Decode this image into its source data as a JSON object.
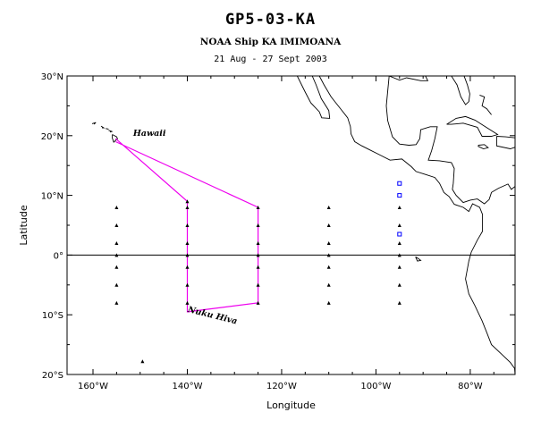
{
  "title": "GP5-03-KA",
  "subtitle": "NOAA Ship KA IMIMOANA",
  "dates": "21 Aug - 27 Sept 2003",
  "axes": {
    "xlabel": "Longitude",
    "ylabel": "Latitude",
    "x_ticks": [
      {
        "value": -160,
        "label": "160°W"
      },
      {
        "value": -140,
        "label": "140°W"
      },
      {
        "value": -120,
        "label": "120°W"
      },
      {
        "value": -100,
        "label": "100°W"
      },
      {
        "value": -80,
        "label": "80°W"
      }
    ],
    "y_ticks": [
      {
        "value": 30,
        "label": "30°N"
      },
      {
        "value": 20,
        "label": "20°N"
      },
      {
        "value": 10,
        "label": "10°N"
      },
      {
        "value": 0,
        "label": "0°"
      },
      {
        "value": -10,
        "label": "10°S"
      },
      {
        "value": -20,
        "label": "20°S"
      }
    ],
    "xlim": [
      -165.5,
      -70.5
    ],
    "ylim": [
      -20,
      30
    ]
  },
  "place_labels": [
    {
      "name": "Hawaii",
      "lon": -151.5,
      "lat": 20.0
    },
    {
      "name": "Nuku Hiva",
      "lon": -140.0,
      "lat": -9.5
    }
  ],
  "colors": {
    "track": "#ee00ee",
    "adcp": "#0000ff",
    "buoy": "#000000",
    "coast": "#000000"
  },
  "chart_data": {
    "type": "map",
    "ship_track": [
      [
        -155.2,
        19.5
      ],
      [
        -140.0,
        9.0
      ],
      [
        -140.0,
        8.0
      ],
      [
        -140.0,
        5.0
      ],
      [
        -140.0,
        2.0
      ],
      [
        -140.0,
        0.0
      ],
      [
        -140.0,
        -2.0
      ],
      [
        -140.0,
        -5.0
      ],
      [
        -140.0,
        -8.0
      ],
      [
        -140.0,
        -9.5
      ],
      [
        -125.0,
        -8.0
      ],
      [
        -125.0,
        -5.0
      ],
      [
        -125.0,
        -2.0
      ],
      [
        -125.0,
        0.0
      ],
      [
        -125.0,
        2.0
      ],
      [
        -125.0,
        5.0
      ],
      [
        -125.0,
        8.0
      ],
      [
        -155.2,
        19.0
      ]
    ],
    "tao_buoys": [
      [
        -155,
        8
      ],
      [
        -155,
        5
      ],
      [
        -155,
        2
      ],
      [
        -155,
        0
      ],
      [
        -155,
        -2
      ],
      [
        -155,
        -5
      ],
      [
        -155,
        -8
      ],
      [
        -140,
        9
      ],
      [
        -140,
        8
      ],
      [
        -140,
        5
      ],
      [
        -140,
        2
      ],
      [
        -140,
        0
      ],
      [
        -140,
        -2
      ],
      [
        -140,
        -5
      ],
      [
        -140,
        -8
      ],
      [
        -125,
        8
      ],
      [
        -125,
        5
      ],
      [
        -125,
        2
      ],
      [
        -125,
        0
      ],
      [
        -125,
        -2
      ],
      [
        -125,
        -5
      ],
      [
        -125,
        -8
      ],
      [
        -110,
        8
      ],
      [
        -110,
        5
      ],
      [
        -110,
        2
      ],
      [
        -110,
        0
      ],
      [
        -110,
        -2
      ],
      [
        -110,
        -5
      ],
      [
        -110,
        -8
      ],
      [
        -95,
        8
      ],
      [
        -95,
        5
      ],
      [
        -95,
        2
      ],
      [
        -95,
        0
      ],
      [
        -95,
        -2
      ],
      [
        -95,
        -5
      ],
      [
        -95,
        -8
      ],
      [
        -149.5,
        -17.8
      ]
    ],
    "adcp_moorings": [
      [
        -95,
        12
      ],
      [
        -95,
        10
      ],
      [
        -95,
        3.5
      ]
    ]
  },
  "coastline": {
    "north_america": [
      [
        -116.7,
        30.0
      ],
      [
        -115.0,
        27.3
      ],
      [
        -113.8,
        25.5
      ],
      [
        -112.0,
        24.0
      ],
      [
        -111.5,
        23.0
      ],
      [
        -109.8,
        22.9
      ],
      [
        -110.0,
        24.2
      ],
      [
        -111.6,
        26.2
      ],
      [
        -112.7,
        28.5
      ],
      [
        -113.5,
        30.0
      ]
    ],
    "mexico": [
      [
        -112.0,
        30.0
      ],
      [
        -111.0,
        28.5
      ],
      [
        -109.5,
        26.5
      ],
      [
        -108.5,
        25.5
      ],
      [
        -106.0,
        23.0
      ],
      [
        -105.4,
        21.5
      ],
      [
        -105.3,
        20.3
      ],
      [
        -104.5,
        19.0
      ],
      [
        -103.0,
        18.3
      ],
      [
        -101.5,
        17.7
      ],
      [
        -99.5,
        16.9
      ],
      [
        -97.0,
        15.9
      ],
      [
        -94.5,
        16.1
      ],
      [
        -92.5,
        14.8
      ],
      [
        -91.5,
        14.0
      ],
      [
        -89.5,
        13.5
      ],
      [
        -87.5,
        13.0
      ],
      [
        -86.5,
        12.0
      ],
      [
        -85.6,
        10.5
      ],
      [
        -84.5,
        9.8
      ],
      [
        -83.4,
        8.5
      ],
      [
        -81.5,
        8.0
      ],
      [
        -80.3,
        7.3
      ],
      [
        -79.5,
        8.6
      ],
      [
        -78.0,
        8.0
      ],
      [
        -77.4,
        6.8
      ],
      [
        -77.4,
        4.0
      ],
      [
        -78.5,
        2.5
      ],
      [
        -79.8,
        0.5
      ],
      [
        -80.3,
        -1.0
      ],
      [
        -81.0,
        -4.0
      ],
      [
        -80.3,
        -6.5
      ],
      [
        -79.0,
        -8.5
      ],
      [
        -77.5,
        -11.0
      ],
      [
        -76.5,
        -13.0
      ],
      [
        -75.5,
        -15.0
      ],
      [
        -73.5,
        -16.5
      ],
      [
        -71.5,
        -18.0
      ],
      [
        -70.6,
        -19.0
      ],
      [
        -70.5,
        -20.0
      ]
    ],
    "gulf_coast": [
      [
        -97.2,
        30.0
      ],
      [
        -97.5,
        27.5
      ],
      [
        -97.8,
        25.0
      ],
      [
        -97.5,
        22.5
      ],
      [
        -96.5,
        19.8
      ],
      [
        -95.0,
        18.6
      ],
      [
        -93.0,
        18.4
      ],
      [
        -91.5,
        18.5
      ],
      [
        -90.7,
        19.5
      ],
      [
        -90.5,
        21.0
      ],
      [
        -88.5,
        21.5
      ],
      [
        -87.0,
        21.5
      ],
      [
        -87.5,
        19.5
      ],
      [
        -88.2,
        17.5
      ],
      [
        -88.9,
        15.9
      ],
      [
        -86.5,
        15.8
      ],
      [
        -84.0,
        15.5
      ],
      [
        -83.4,
        14.5
      ],
      [
        -83.6,
        12.0
      ],
      [
        -83.8,
        11.0
      ],
      [
        -83.0,
        10.0
      ],
      [
        -81.5,
        8.8
      ],
      [
        -80.0,
        9.2
      ],
      [
        -78.5,
        9.4
      ],
      [
        -77.0,
        8.6
      ],
      [
        -76.0,
        9.3
      ],
      [
        -75.5,
        10.5
      ],
      [
        -74.0,
        11.2
      ],
      [
        -72.0,
        11.9
      ],
      [
        -71.3,
        11.0
      ],
      [
        -70.5,
        11.5
      ]
    ],
    "florida": [
      [
        -84.0,
        30.0
      ],
      [
        -82.8,
        28.5
      ],
      [
        -82.0,
        26.5
      ],
      [
        -81.0,
        25.2
      ],
      [
        -80.3,
        25.7
      ],
      [
        -80.1,
        27.0
      ],
      [
        -80.6,
        28.5
      ],
      [
        -81.3,
        30.0
      ]
    ],
    "gulf_north": [
      [
        -89.5,
        30.0
      ],
      [
        -89.0,
        29.2
      ],
      [
        -90.5,
        29.2
      ],
      [
        -93.5,
        29.7
      ],
      [
        -95.0,
        29.3
      ],
      [
        -97.2,
        30.0
      ]
    ],
    "cuba": [
      [
        -85.0,
        21.9
      ],
      [
        -83.0,
        22.9
      ],
      [
        -81.0,
        23.2
      ],
      [
        -79.0,
        22.6
      ],
      [
        -77.0,
        21.6
      ],
      [
        -74.2,
        20.2
      ],
      [
        -75.5,
        19.9
      ],
      [
        -77.5,
        19.9
      ],
      [
        -78.5,
        21.4
      ],
      [
        -81.5,
        22.1
      ],
      [
        -84.0,
        21.9
      ],
      [
        -85.0,
        21.9
      ]
    ],
    "hispaniola": [
      [
        -74.4,
        19.9
      ],
      [
        -72.5,
        19.8
      ],
      [
        -70.0,
        19.6
      ],
      [
        -68.5,
        18.6
      ],
      [
        -71.5,
        17.8
      ],
      [
        -74.4,
        18.3
      ],
      [
        -74.4,
        19.9
      ]
    ],
    "jamaica": [
      [
        -78.3,
        18.4
      ],
      [
        -77.0,
        18.5
      ],
      [
        -76.2,
        18.0
      ],
      [
        -77.2,
        17.8
      ],
      [
        -78.3,
        18.2
      ],
      [
        -78.3,
        18.4
      ]
    ],
    "puerto_rico": [
      [
        -67.2,
        18.4
      ],
      [
        -66.0,
        18.4
      ],
      [
        -65.6,
        18.0
      ],
      [
        -67.2,
        18.0
      ],
      [
        -67.2,
        18.4
      ]
    ],
    "bahamas": [
      [
        -78.0,
        26.8
      ],
      [
        -77.0,
        26.5
      ],
      [
        -77.5,
        25.0
      ],
      [
        -76.5,
        24.5
      ],
      [
        -75.5,
        23.5
      ]
    ],
    "hawaii": [
      [
        [
          -160.2,
          22.0
        ],
        [
          -159.4,
          22.2
        ],
        [
          -159.8,
          21.9
        ]
      ],
      [
        [
          -158.3,
          21.6
        ],
        [
          -157.7,
          21.3
        ],
        [
          -158.1,
          21.3
        ]
      ],
      [
        [
          -157.3,
          21.2
        ],
        [
          -156.7,
          21.1
        ]
      ],
      [
        [
          -156.7,
          20.9
        ],
        [
          -156.0,
          20.7
        ],
        [
          -156.4,
          20.6
        ]
      ],
      [
        [
          -155.9,
          20.2
        ],
        [
          -155.0,
          19.8
        ],
        [
          -154.8,
          19.5
        ],
        [
          -155.6,
          18.9
        ],
        [
          -155.9,
          19.6
        ],
        [
          -155.9,
          20.2
        ]
      ]
    ],
    "galapagos": [
      [
        -91.6,
        -0.3
      ],
      [
        -91.0,
        -0.6
      ],
      [
        -90.5,
        -0.9
      ],
      [
        -91.2,
        -1.0
      ],
      [
        -91.6,
        -0.3
      ]
    ]
  }
}
